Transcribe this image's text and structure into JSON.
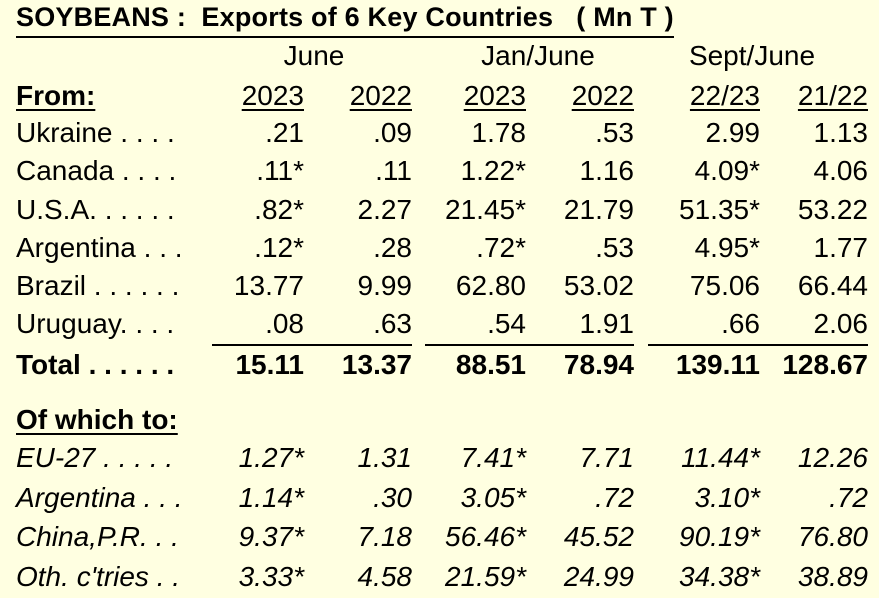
{
  "chart_data": {
    "type": "table",
    "title": "SOYBEANS :  Exports of 6 Key Countries   ( Mn T )",
    "period_headers": [
      "June",
      "Jan/June",
      "Sept/June"
    ],
    "columns": [
      "2023",
      "2022",
      "2023",
      "2022",
      "22/23",
      "21/22"
    ],
    "from_label": "From:",
    "from_rows": [
      {
        "label": "Ukraine . . . .",
        "values": [
          ".21",
          ".09",
          "1.78",
          ".53",
          "2.99",
          "1.13"
        ]
      },
      {
        "label": "Canada . . . .",
        "values": [
          ".11*",
          ".11",
          "1.22*",
          "1.16",
          "4.09*",
          "4.06"
        ]
      },
      {
        "label": "U.S.A. . . . . .",
        "values": [
          ".82*",
          "2.27",
          "21.45*",
          "21.79",
          "51.35*",
          "53.22"
        ]
      },
      {
        "label": "Argentina . . .",
        "values": [
          ".12*",
          ".28",
          ".72*",
          ".53",
          "4.95*",
          "1.77"
        ]
      },
      {
        "label": "Brazil . . . . . .",
        "values": [
          "13.77",
          "9.99",
          "62.80",
          "53.02",
          "75.06",
          "66.44"
        ]
      },
      {
        "label": "Uruguay. . . .",
        "values": [
          ".08",
          ".63",
          ".54",
          "1.91",
          ".66",
          "2.06"
        ]
      }
    ],
    "total_row": {
      "label": "Total . . . . . .",
      "values": [
        "15.11",
        "13.37",
        "88.51",
        "78.94",
        "139.11",
        "128.67"
      ]
    },
    "to_label": "Of which to:",
    "to_rows": [
      {
        "label": "EU-27 . . . . .",
        "values": [
          "1.27*",
          "1.31",
          "7.41*",
          "7.71",
          "11.44*",
          "12.26"
        ]
      },
      {
        "label": "Argentina . . .",
        "values": [
          "1.14*",
          ".30",
          "3.05*",
          ".72",
          "3.10*",
          ".72"
        ]
      },
      {
        "label": "China,P.R. . .",
        "values": [
          "9.37*",
          "7.18",
          "56.46*",
          "45.52",
          "90.19*",
          "76.80"
        ]
      },
      {
        "label": "Oth. c'tries . .",
        "values": [
          "3.33*",
          "4.58",
          "21.59*",
          "24.99",
          "34.38*",
          "38.89"
        ]
      }
    ]
  }
}
